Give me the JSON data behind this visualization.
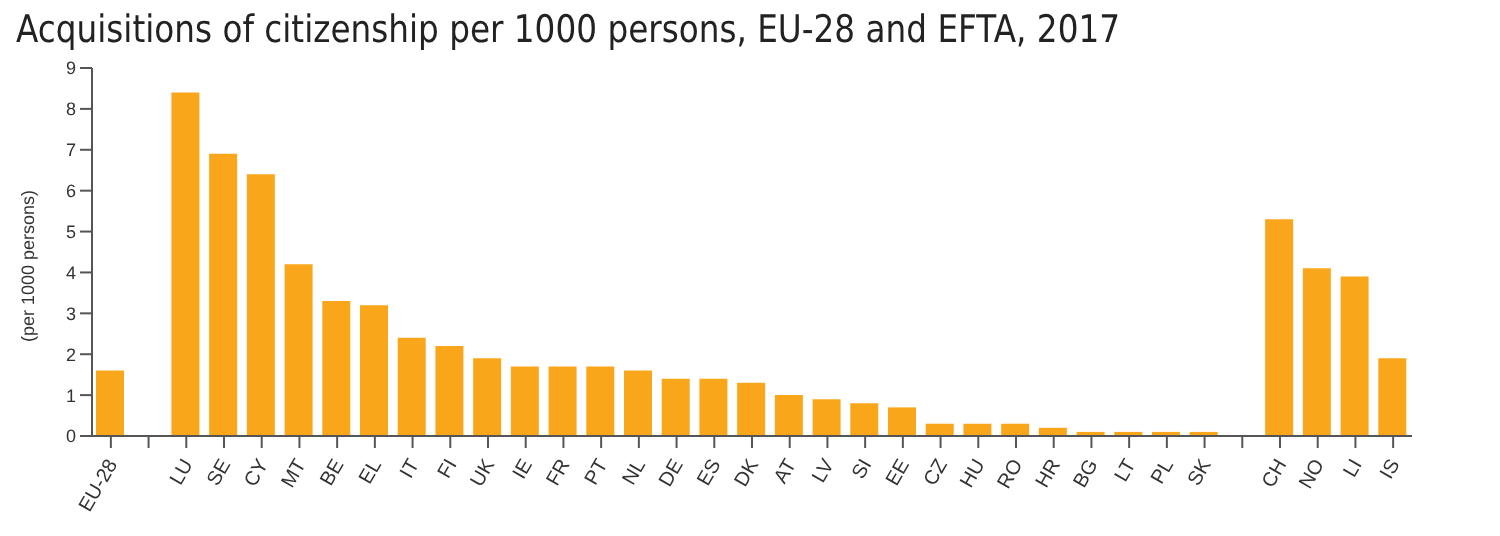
{
  "chart_data": {
    "type": "bar",
    "title": "Acquisitions of citizenship per 1000 persons, EU-28 and EFTA, 2017",
    "ylabel": "(per 1000 persons)",
    "categories": [
      "EU-28",
      null,
      "LU",
      "SE",
      "CY",
      "MT",
      "BE",
      "EL",
      "IT",
      "FI",
      "UK",
      "IE",
      "FR",
      "PT",
      "NL",
      "DE",
      "ES",
      "DK",
      "AT",
      "LV",
      "SI",
      "EE",
      "CZ",
      "HU",
      "RO",
      "HR",
      "BG",
      "LT",
      "PL",
      "SK",
      null,
      "CH",
      "NO",
      "LI",
      "IS"
    ],
    "values": [
      1.6,
      null,
      8.4,
      6.9,
      6.4,
      4.2,
      3.3,
      3.2,
      2.4,
      2.2,
      1.9,
      1.7,
      1.7,
      1.7,
      1.6,
      1.4,
      1.4,
      1.3,
      1.0,
      0.9,
      0.8,
      0.7,
      0.3,
      0.3,
      0.3,
      0.2,
      0.1,
      0.1,
      0.1,
      0.1,
      null,
      5.3,
      4.1,
      3.9,
      1.9
    ],
    "color": "#faa61a",
    "ylim": [
      0,
      9
    ],
    "yticks": [
      0,
      1,
      2,
      3,
      4,
      5,
      6,
      7,
      8,
      9
    ],
    "grid": false,
    "legend": false
  }
}
